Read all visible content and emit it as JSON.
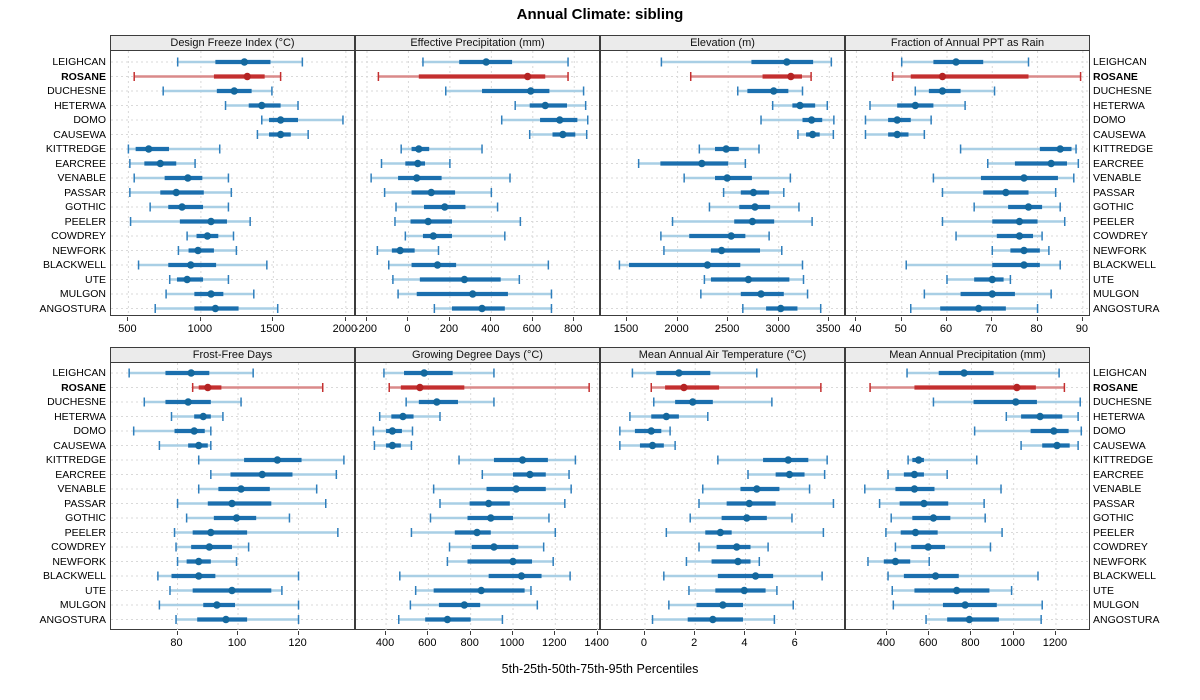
{
  "title": "Annual Climate: sibling",
  "caption": "5th-25th-50th-75th-95th Percentiles",
  "highlight_station": "ROSANE",
  "stations": [
    "LEIGHCAN",
    "ROSANE",
    "DUCHESNE",
    "HETERWA",
    "DOMO",
    "CAUSEWA",
    "KITTREDGE",
    "EARCREE",
    "VENABLE",
    "PASSAR",
    "GOTHIC",
    "PEELER",
    "COWDREY",
    "NEWFORK",
    "BLACKWELL",
    "UTE",
    "MULGON",
    "ANGOSTURA"
  ],
  "colors": {
    "blue_thick": "#1b6fae",
    "blue_whisker": "#a9cfe5",
    "blue_cap": "#2e7ebc",
    "blue_dot": "#14689e",
    "red_thick": "#c42f2f",
    "red_whisker": "#da8a8a",
    "red_cap": "#c42f2f",
    "red_dot": "#b52323",
    "grid": "#d9d9d9",
    "strip_bg": "#ebebeb",
    "border": "#3c3c3c"
  },
  "percentile_keys": [
    "p5",
    "p25",
    "p50",
    "p75",
    "p95"
  ],
  "chart_data": [
    {
      "type": "dot-interval",
      "title": "Design Freeze Index (°C)",
      "row": 0,
      "col": 0,
      "xlim": [
        380,
        2070
      ],
      "ticks": [
        500,
        1000,
        1500,
        2000
      ],
      "values": [
        [
          840,
          1100,
          1300,
          1480,
          1700
        ],
        [
          540,
          1090,
          1320,
          1440,
          1550
        ],
        [
          740,
          1110,
          1230,
          1350,
          1490
        ],
        [
          1170,
          1330,
          1420,
          1550,
          1670
        ],
        [
          1420,
          1470,
          1550,
          1670,
          1980
        ],
        [
          1390,
          1470,
          1550,
          1620,
          1740
        ],
        [
          500,
          550,
          640,
          780,
          1130
        ],
        [
          510,
          610,
          720,
          830,
          960
        ],
        [
          540,
          750,
          910,
          1010,
          1190
        ],
        [
          510,
          720,
          830,
          1020,
          1210
        ],
        [
          650,
          775,
          870,
          1015,
          1190
        ],
        [
          515,
          855,
          1070,
          1180,
          1340
        ],
        [
          905,
          970,
          1045,
          1120,
          1225
        ],
        [
          845,
          915,
          980,
          1090,
          1245
        ],
        [
          570,
          775,
          930,
          1105,
          1455
        ],
        [
          785,
          835,
          905,
          1015,
          1190
        ],
        [
          760,
          955,
          1070,
          1155,
          1365
        ],
        [
          685,
          955,
          1100,
          1260,
          1530
        ]
      ]
    },
    {
      "type": "dot-interval",
      "title": "Effective Precipitation (mm)",
      "row": 0,
      "col": 1,
      "xlim": [
        -253,
        929
      ],
      "ticks": [
        -200,
        0,
        200,
        400,
        600,
        800
      ],
      "values": [
        [
          70,
          245,
          375,
          500,
          770
        ],
        [
          -145,
          50,
          575,
          660,
          770
        ],
        [
          180,
          355,
          590,
          680,
          845
        ],
        [
          515,
          585,
          660,
          765,
          855
        ],
        [
          450,
          635,
          730,
          815,
          865
        ],
        [
          585,
          695,
          745,
          805,
          860
        ],
        [
          -35,
          15,
          50,
          100,
          355
        ],
        [
          -130,
          -15,
          45,
          80,
          200
        ],
        [
          -180,
          -50,
          40,
          160,
          490
        ],
        [
          -115,
          15,
          110,
          225,
          400
        ],
        [
          -60,
          75,
          175,
          275,
          430
        ],
        [
          -65,
          10,
          95,
          210,
          540
        ],
        [
          -15,
          70,
          120,
          210,
          465
        ],
        [
          -150,
          -80,
          -40,
          30,
          145
        ],
        [
          -95,
          15,
          140,
          230,
          675
        ],
        [
          -75,
          55,
          270,
          445,
          535
        ],
        [
          -50,
          40,
          310,
          480,
          690
        ],
        [
          125,
          210,
          355,
          465,
          690
        ]
      ]
    },
    {
      "type": "dot-interval",
      "title": "Elevation (m)",
      "row": 0,
      "col": 2,
      "xlim": [
        1243,
        3665
      ],
      "ticks": [
        1500,
        2000,
        2500,
        3000,
        3500
      ],
      "values": [
        [
          1840,
          2730,
          3080,
          3340,
          3520
        ],
        [
          2130,
          2840,
          3120,
          3230,
          3320
        ],
        [
          2595,
          2690,
          2950,
          3095,
          3235
        ],
        [
          2940,
          3135,
          3210,
          3360,
          3480
        ],
        [
          2825,
          3235,
          3325,
          3430,
          3545
        ],
        [
          3190,
          3270,
          3335,
          3405,
          3540
        ],
        [
          2215,
          2370,
          2480,
          2605,
          2805
        ],
        [
          1615,
          1830,
          2240,
          2500,
          2670
        ],
        [
          2065,
          2370,
          2490,
          2735,
          3115
        ],
        [
          2455,
          2625,
          2750,
          2905,
          3050
        ],
        [
          2315,
          2610,
          2765,
          2915,
          3200
        ],
        [
          1950,
          2560,
          2740,
          2955,
          3330
        ],
        [
          1835,
          2115,
          2530,
          2670,
          2905
        ],
        [
          1865,
          2330,
          2435,
          2815,
          3030
        ],
        [
          1425,
          1520,
          2295,
          2620,
          3235
        ],
        [
          2265,
          2330,
          2700,
          3105,
          3245
        ],
        [
          2230,
          2625,
          2825,
          3050,
          3285
        ],
        [
          2645,
          2875,
          3020,
          3185,
          3415
        ]
      ]
    },
    {
      "type": "dot-interval",
      "title": "Fraction of Annual PPT as Rain",
      "row": 0,
      "col": 3,
      "xlim": [
        37.7,
        91.8
      ],
      "ticks": [
        40,
        50,
        60,
        70,
        80,
        90
      ],
      "values": [
        [
          50,
          57,
          62,
          68,
          78
        ],
        [
          48,
          52,
          59,
          78,
          89.5
        ],
        [
          53,
          56,
          59,
          63,
          70.5
        ],
        [
          43,
          49,
          53,
          57,
          64
        ],
        [
          42,
          47,
          49,
          52,
          56.5
        ],
        [
          42,
          47,
          49,
          51.5,
          55
        ],
        [
          63,
          80.5,
          85,
          87.5,
          88.5
        ],
        [
          69,
          75,
          83,
          86.5,
          89
        ],
        [
          57,
          67.5,
          77,
          84.5,
          88
        ],
        [
          59,
          68,
          73,
          78,
          84
        ],
        [
          66,
          73.5,
          78,
          81,
          85
        ],
        [
          59,
          70,
          76,
          80,
          86
        ],
        [
          62,
          71,
          76,
          79,
          81
        ],
        [
          70,
          74,
          77,
          80.5,
          82.5
        ],
        [
          51,
          70,
          77,
          80.5,
          85
        ],
        [
          60,
          66,
          70,
          72.5,
          74
        ],
        [
          55,
          63,
          70,
          75,
          83
        ],
        [
          52,
          58.5,
          67,
          73,
          80
        ]
      ]
    },
    {
      "type": "dot-interval",
      "title": "Frost-Free Days",
      "row": 1,
      "col": 0,
      "xlim": [
        58,
        139
      ],
      "ticks": [
        80,
        100,
        120
      ],
      "values": [
        [
          64,
          76,
          84.5,
          90.5,
          105
        ],
        [
          85,
          87,
          90,
          94.5,
          128
        ],
        [
          69,
          76,
          83.5,
          91,
          101
        ],
        [
          78,
          85.5,
          88.5,
          91,
          95
        ],
        [
          65.5,
          79,
          85.5,
          89,
          91
        ],
        [
          74,
          83.5,
          87,
          90,
          91
        ],
        [
          87,
          102,
          113,
          121,
          135
        ],
        [
          91,
          97.5,
          108,
          118,
          132.5
        ],
        [
          87,
          93.5,
          101,
          110.5,
          126
        ],
        [
          80,
          90,
          98,
          111,
          129
        ],
        [
          83,
          92,
          99.5,
          106,
          117
        ],
        [
          79,
          85,
          91,
          103,
          133
        ],
        [
          79.5,
          84.5,
          90.5,
          98,
          103.5
        ],
        [
          80,
          83,
          87,
          91,
          99.5
        ],
        [
          73.5,
          78,
          87,
          92.5,
          120
        ],
        [
          77.5,
          85,
          98,
          111,
          114.5
        ],
        [
          74,
          88.5,
          93,
          99,
          120
        ],
        [
          79.5,
          86.5,
          96,
          103,
          120
        ]
      ]
    },
    {
      "type": "dot-interval",
      "title": "Growing Degree Days (°C)",
      "row": 1,
      "col": 1,
      "xlim": [
        258,
        1416
      ],
      "ticks": [
        400,
        600,
        800,
        1000,
        1200,
        1400
      ],
      "values": [
        [
          390,
          485,
          580,
          715,
          910
        ],
        [
          415,
          470,
          560,
          770,
          1360
        ],
        [
          495,
          555,
          640,
          740,
          910
        ],
        [
          370,
          425,
          480,
          530,
          655
        ],
        [
          340,
          400,
          430,
          475,
          525
        ],
        [
          345,
          400,
          430,
          470,
          520
        ],
        [
          745,
          910,
          1045,
          1165,
          1295
        ],
        [
          855,
          1000,
          1080,
          1155,
          1265
        ],
        [
          625,
          875,
          1015,
          1155,
          1275
        ],
        [
          655,
          795,
          885,
          985,
          1245
        ],
        [
          610,
          785,
          895,
          1000,
          1170
        ],
        [
          520,
          725,
          830,
          895,
          1200
        ],
        [
          700,
          805,
          910,
          1025,
          1145
        ],
        [
          690,
          785,
          1000,
          1090,
          1190
        ],
        [
          465,
          885,
          1040,
          1135,
          1270
        ],
        [
          540,
          625,
          850,
          1055,
          1085
        ],
        [
          515,
          650,
          770,
          845,
          1115
        ],
        [
          460,
          585,
          690,
          800,
          950
        ]
      ]
    },
    {
      "type": "dot-interval",
      "title": "Mean Annual Air Temperature (°C)",
      "row": 1,
      "col": 2,
      "xlim": [
        -1.75,
        8.0
      ],
      "ticks": [
        0,
        2,
        4,
        6
      ],
      "values": [
        [
          -0.5,
          0.45,
          1.35,
          2.6,
          4.45
        ],
        [
          0.25,
          0.8,
          1.55,
          2.95,
          7.0
        ],
        [
          0.35,
          1.2,
          1.9,
          2.7,
          5.05
        ],
        [
          -0.6,
          0.25,
          0.85,
          1.35,
          2.5
        ],
        [
          -1.0,
          -0.4,
          0.25,
          0.65,
          1.0
        ],
        [
          -1.0,
          -0.2,
          0.3,
          0.75,
          1.2
        ],
        [
          2.9,
          4.7,
          5.7,
          6.5,
          7.25
        ],
        [
          4.1,
          5.2,
          5.75,
          6.35,
          7.15
        ],
        [
          2.3,
          3.8,
          4.45,
          5.35,
          6.55
        ],
        [
          2.15,
          3.25,
          4.15,
          5.2,
          7.5
        ],
        [
          1.8,
          3.05,
          4.05,
          4.85,
          5.85
        ],
        [
          0.85,
          2.4,
          3.0,
          3.45,
          7.1
        ],
        [
          2.15,
          2.85,
          3.65,
          4.2,
          4.9
        ],
        [
          1.65,
          2.65,
          3.7,
          4.2,
          4.55
        ],
        [
          0.75,
          2.9,
          4.4,
          5.1,
          7.05
        ],
        [
          1.75,
          2.8,
          3.95,
          4.8,
          5.25
        ],
        [
          0.95,
          2.05,
          3.1,
          3.9,
          5.9
        ],
        [
          0.3,
          1.7,
          2.7,
          3.9,
          5.15
        ]
      ]
    },
    {
      "type": "dot-interval",
      "title": "Mean Annual Precipitation (mm)",
      "row": 1,
      "col": 3,
      "xlim": [
        206,
        1366
      ],
      "ticks": [
        400,
        600,
        800,
        1000,
        1200
      ],
      "values": [
        [
          495,
          645,
          765,
          905,
          1215
        ],
        [
          320,
          530,
          1015,
          1105,
          1240
        ],
        [
          620,
          810,
          1010,
          1110,
          1315
        ],
        [
          965,
          1035,
          1125,
          1230,
          1305
        ],
        [
          815,
          1080,
          1190,
          1260,
          1320
        ],
        [
          1035,
          1135,
          1205,
          1265,
          1305
        ],
        [
          500,
          520,
          550,
          575,
          825
        ],
        [
          405,
          480,
          530,
          575,
          685
        ],
        [
          295,
          440,
          530,
          625,
          940
        ],
        [
          365,
          460,
          575,
          690,
          860
        ],
        [
          420,
          520,
          620,
          700,
          865
        ],
        [
          395,
          465,
          535,
          640,
          945
        ],
        [
          440,
          515,
          595,
          675,
          890
        ],
        [
          310,
          385,
          440,
          510,
          600
        ],
        [
          405,
          480,
          630,
          740,
          1115
        ],
        [
          425,
          530,
          730,
          885,
          990
        ],
        [
          430,
          665,
          770,
          920,
          1135
        ],
        [
          585,
          685,
          790,
          930,
          1130
        ]
      ]
    }
  ]
}
